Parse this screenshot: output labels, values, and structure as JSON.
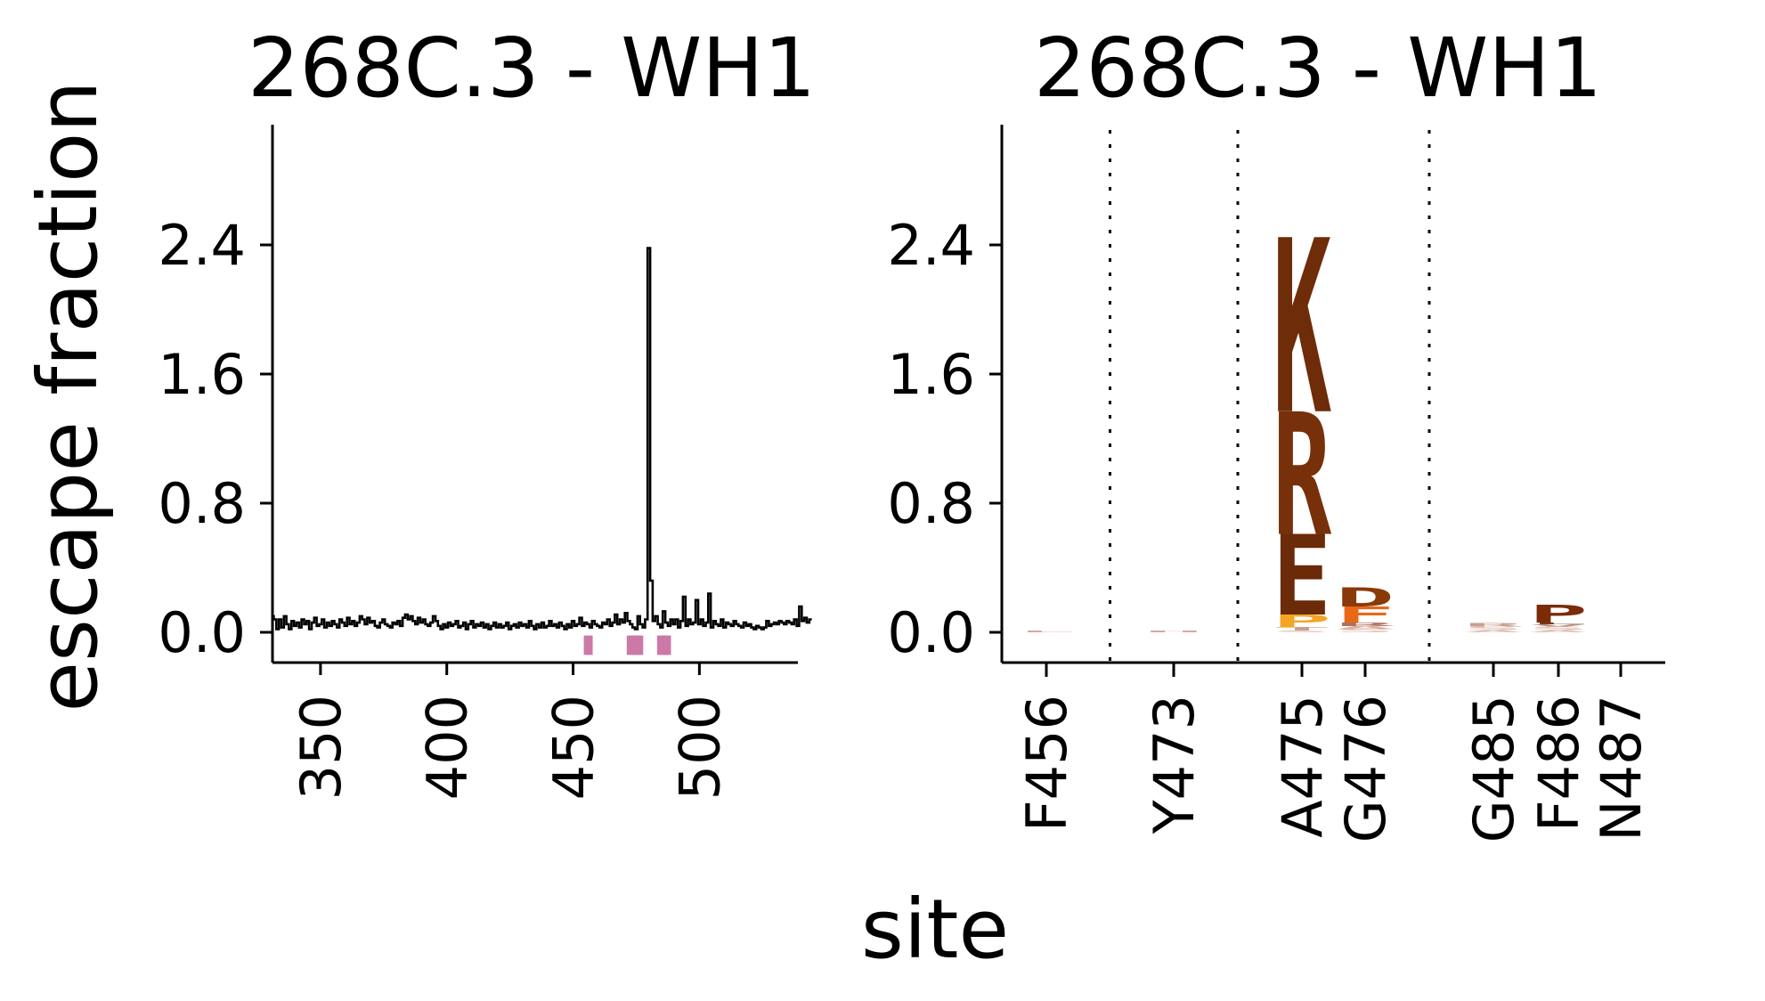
{
  "figure": {
    "ylabel": "escape fraction",
    "xlabel": "site"
  },
  "chart_data": [
    {
      "type": "line",
      "title": "268C.3 - WH1",
      "xlabel": "site",
      "ylabel": "escape fraction",
      "xlim": [
        331,
        539
      ],
      "ylim": [
        -0.15,
        2.55
      ],
      "xticks": [
        350,
        400,
        450,
        500
      ],
      "yticks": [
        "0.0",
        "0.8",
        "1.6",
        "2.4"
      ],
      "line_color": "#000000",
      "highlight_color": "#cc79a7",
      "highlighted_sites": [
        456,
        473,
        475,
        476,
        485,
        486,
        487
      ],
      "highlight_range": [
        -0.02,
        -0.14
      ],
      "site_start": 331,
      "values": [
        0.1,
        0.08,
        0.02,
        0.08,
        0.03,
        0.1,
        0.05,
        0.02,
        0.07,
        0.04,
        0.06,
        0.03,
        0.08,
        0.05,
        0.07,
        0.02,
        0.06,
        0.09,
        0.04,
        0.05,
        0.08,
        0.03,
        0.06,
        0.04,
        0.07,
        0.05,
        0.03,
        0.08,
        0.06,
        0.04,
        0.09,
        0.05,
        0.07,
        0.04,
        0.06,
        0.1,
        0.08,
        0.05,
        0.09,
        0.06,
        0.07,
        0.04,
        0.03,
        0.06,
        0.08,
        0.05,
        0.04,
        0.03,
        0.06,
        0.05,
        0.07,
        0.04,
        0.09,
        0.11,
        0.08,
        0.1,
        0.07,
        0.05,
        0.09,
        0.06,
        0.08,
        0.05,
        0.04,
        0.06,
        0.1,
        0.07,
        0.04,
        0.02,
        0.05,
        0.03,
        0.06,
        0.04,
        0.05,
        0.07,
        0.03,
        0.04,
        0.06,
        0.02,
        0.05,
        0.07,
        0.03,
        0.05,
        0.04,
        0.06,
        0.03,
        0.05,
        0.02,
        0.04,
        0.06,
        0.03,
        0.05,
        0.03,
        0.04,
        0.06,
        0.02,
        0.04,
        0.05,
        0.03,
        0.06,
        0.04,
        0.05,
        0.03,
        0.07,
        0.04,
        0.02,
        0.05,
        0.03,
        0.06,
        0.03,
        0.04,
        0.07,
        0.04,
        0.05,
        0.03,
        0.06,
        0.04,
        0.02,
        0.05,
        0.03,
        0.07,
        0.04,
        0.05,
        0.09,
        0.04,
        0.06,
        0.05,
        0.03,
        0.07,
        0.05,
        0.04,
        0.03,
        0.06,
        0.05,
        0.08,
        0.04,
        0.06,
        0.11,
        0.05,
        0.08,
        0.06,
        0.12,
        0.07,
        0.05,
        0.03,
        0.02,
        0.1,
        0.05,
        0.03,
        0.08,
        2.38,
        0.32,
        0.07,
        0.1,
        0.05,
        0.03,
        0.13,
        0.06,
        0.04,
        0.08,
        0.05,
        0.08,
        0.03,
        0.07,
        0.22,
        0.04,
        0.08,
        0.05,
        0.06,
        0.2,
        0.05,
        0.08,
        0.04,
        0.06,
        0.24,
        0.03,
        0.07,
        0.05,
        0.04,
        0.08,
        0.03,
        0.06,
        0.05,
        0.04,
        0.07,
        0.05,
        0.04,
        0.03,
        0.06,
        0.04,
        0.05,
        0.03,
        0.02,
        0.04,
        0.03,
        0.02,
        0.03,
        0.07,
        0.04,
        0.05,
        0.06,
        0.05,
        0.07,
        0.06,
        0.05,
        0.07,
        0.06,
        0.05,
        0.08,
        0.04,
        0.16,
        0.07,
        0.09,
        0.06,
        0.08
      ]
    },
    {
      "type": "logo",
      "title": "268C.3 - WH1",
      "xlabel": "site",
      "ylabel": "escape fraction",
      "ylim": [
        -0.15,
        2.55
      ],
      "yticks": [
        "0.0",
        "0.8",
        "1.6",
        "2.4"
      ],
      "categories": [
        "F456",
        "Y473",
        "A475",
        "G476",
        "G485",
        "F486",
        "N487"
      ],
      "separators_after": [
        0,
        1,
        3
      ],
      "stacks": [
        {
          "site": "F456",
          "letters": [
            {
              "aa": "L",
              "value": 0.01,
              "color": "#d9a79a"
            }
          ]
        },
        {
          "site": "Y473",
          "letters": [
            {
              "aa": "H",
              "value": 0.01,
              "color": "#d9a79a"
            }
          ]
        },
        {
          "site": "A475",
          "letters": [
            {
              "aa": "S",
              "value": 0.01,
              "color": "#e7c3b8"
            },
            {
              "aa": "T",
              "value": 0.02,
              "color": "#c9a090"
            },
            {
              "aa": "P",
              "value": 0.08,
              "color": "#f5a524"
            },
            {
              "aa": "E",
              "value": 0.5,
              "color": "#6b2a08"
            },
            {
              "aa": "R",
              "value": 0.76,
              "color": "#77300a"
            },
            {
              "aa": "K",
              "value": 1.08,
              "color": "#6f2c09"
            }
          ]
        },
        {
          "site": "G476",
          "letters": [
            {
              "aa": "S",
              "value": 0.02,
              "color": "#e8c8bc"
            },
            {
              "aa": "A",
              "value": 0.02,
              "color": "#d8b0a0"
            },
            {
              "aa": "R",
              "value": 0.02,
              "color": "#b07060"
            },
            {
              "aa": "F",
              "value": 0.1,
              "color": "#e86816"
            },
            {
              "aa": "D",
              "value": 0.12,
              "color": "#8a3a08"
            }
          ]
        },
        {
          "site": "G485",
          "letters": [
            {
              "aa": "A",
              "value": 0.015,
              "color": "#dcc0b4"
            },
            {
              "aa": "S",
              "value": 0.02,
              "color": "#e3c2b6"
            },
            {
              "aa": "R",
              "value": 0.02,
              "color": "#c8a090"
            }
          ]
        },
        {
          "site": "F486",
          "letters": [
            {
              "aa": "A",
              "value": 0.015,
              "color": "#dcc0b4"
            },
            {
              "aa": "S",
              "value": 0.02,
              "color": "#e3c2b6"
            },
            {
              "aa": "V",
              "value": 0.015,
              "color": "#b8907e"
            },
            {
              "aa": "L",
              "value": 0.01,
              "color": "#7a3a18"
            },
            {
              "aa": "P",
              "value": 0.11,
              "color": "#7a2c08"
            }
          ]
        },
        {
          "site": "N487",
          "letters": []
        }
      ]
    }
  ]
}
